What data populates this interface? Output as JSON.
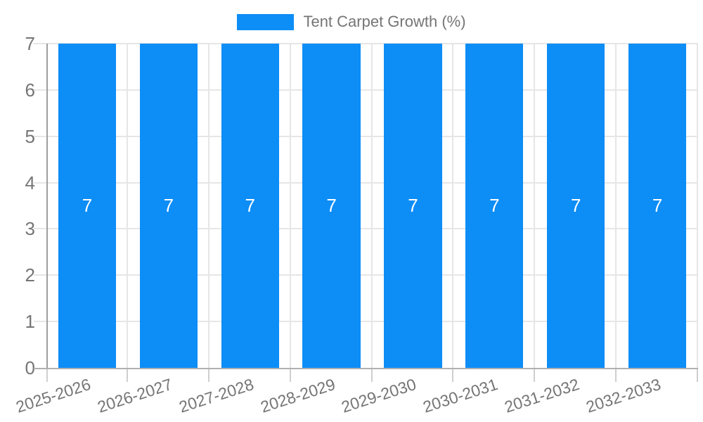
{
  "chart_data": {
    "type": "bar",
    "title": "Tent Carpet Growth (%)",
    "categories": [
      "2025-2026",
      "2026-2027",
      "2027-2028",
      "2028-2029",
      "2029-2030",
      "2030-2031",
      "2031-2032",
      "2032-2033"
    ],
    "values": [
      7,
      7,
      7,
      7,
      7,
      7,
      7,
      7
    ],
    "value_labels": [
      "7",
      "7",
      "7",
      "7",
      "7",
      "7",
      "7",
      "7"
    ],
    "xlabel": "",
    "ylabel": "",
    "ylim": [
      0,
      7
    ],
    "yticks": [
      0,
      1,
      2,
      3,
      4,
      5,
      6,
      7
    ],
    "grid": true,
    "legend_position": "top",
    "legend_entries": [
      "Tent Carpet Growth (%)"
    ],
    "colors": {
      "bar": "#0d8df6",
      "value_label": "#ffffff",
      "axis_text": "#757575",
      "grid_line": "#e6e6e6",
      "y_axis_line": "#9e9e9e",
      "x_axis_line": "#b0b0b0",
      "tick_mark": "#cfcfcf",
      "background": "#ffffff"
    }
  }
}
